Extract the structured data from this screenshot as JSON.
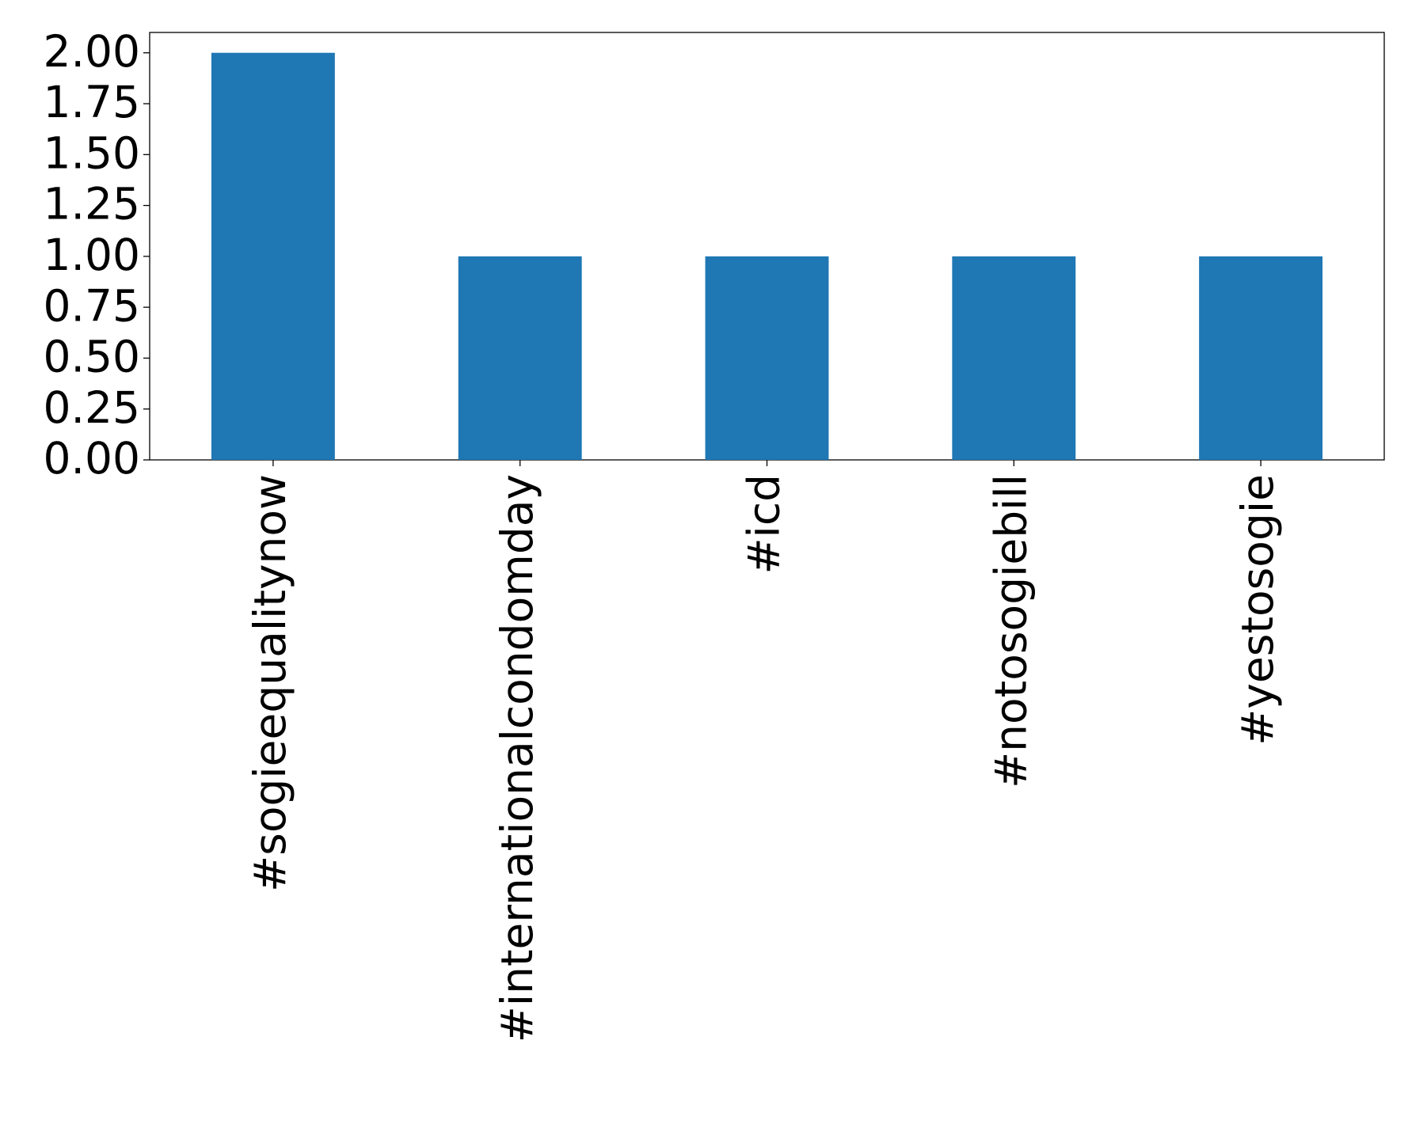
{
  "chart_data": {
    "type": "bar",
    "categories": [
      "#sogieequalitynow",
      "#internationalcondomday",
      "#icd",
      "#notosogiebill",
      "#yestosogie"
    ],
    "values": [
      2,
      1,
      1,
      1,
      1
    ],
    "color": "#1f77b4",
    "ylim": [
      0,
      2.1
    ],
    "yticks": [
      {
        "value": 0,
        "label": "0.00"
      },
      {
        "value": 0.25,
        "label": "0.25"
      },
      {
        "value": 0.5,
        "label": "0.50"
      },
      {
        "value": 0.75,
        "label": "0.75"
      },
      {
        "value": 1,
        "label": "1.00"
      },
      {
        "value": 1.25,
        "label": "1.25"
      },
      {
        "value": 1.5,
        "label": "1.50"
      },
      {
        "value": 1.75,
        "label": "1.75"
      },
      {
        "value": 2,
        "label": "2.00"
      }
    ],
    "grid": false
  }
}
